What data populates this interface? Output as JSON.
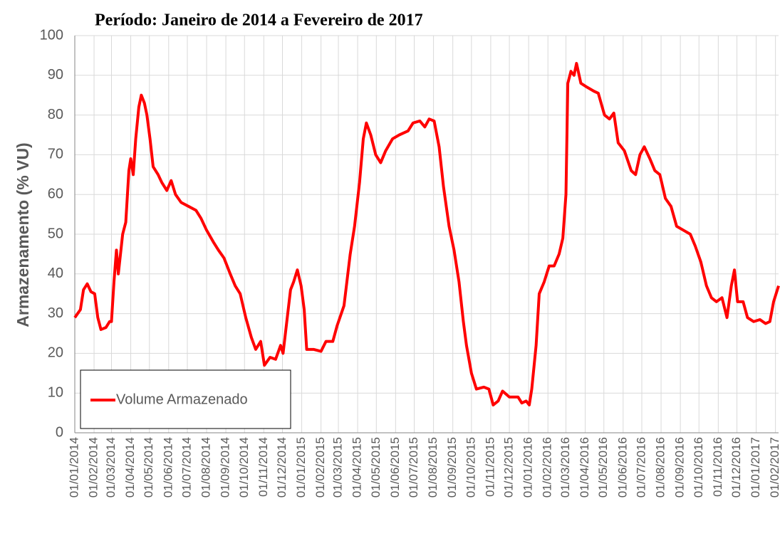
{
  "chart_data": {
    "type": "line",
    "title": "Período: Janeiro de 2014 a Fevereiro de 2017",
    "y_label": "Armazenamento (% VU)",
    "grid": true,
    "legend": "lower left",
    "xlim": [
      "01/01/2014",
      "06/02/2017"
    ],
    "ylim": [
      0,
      100
    ],
    "yticks": [
      0,
      10,
      20,
      30,
      40,
      50,
      60,
      70,
      80,
      90,
      100
    ],
    "xticks": [
      "01/01/2014",
      "01/02/2014",
      "01/03/2014",
      "01/04/2014",
      "01/05/2014",
      "01/06/2014",
      "01/07/2014",
      "01/08/2014",
      "01/09/2014",
      "01/10/2014",
      "01/11/2014",
      "01/12/2014",
      "01/01/2015",
      "01/02/2015",
      "01/03/2015",
      "01/04/2015",
      "01/05/2015",
      "01/06/2015",
      "01/07/2015",
      "01/08/2015",
      "01/09/2015",
      "01/10/2015",
      "01/11/2015",
      "01/12/2015",
      "01/01/2016",
      "01/02/2016",
      "01/03/2016",
      "01/04/2016",
      "01/05/2016",
      "01/06/2016",
      "01/07/2016",
      "01/08/2016",
      "01/09/2016",
      "01/10/2016",
      "01/11/2016",
      "01/12/2016",
      "01/01/2017",
      "01/02/2017"
    ],
    "x": [
      "01/01/2014",
      "10/01/2014",
      "15/01/2014",
      "21/01/2014",
      "27/01/2014",
      "02/02/2014",
      "07/02/2014",
      "12/02/2014",
      "20/02/2014",
      "26/02/2014",
      "01/03/2014",
      "05/03/2014",
      "09/03/2014",
      "12/03/2014",
      "19/03/2014",
      "24/03/2014",
      "29/03/2014",
      "01/04/2014",
      "05/04/2014",
      "09/04/2014",
      "14/04/2014",
      "18/04/2014",
      "23/04/2014",
      "27/04/2014",
      "02/05/2014",
      "07/05/2014",
      "15/05/2014",
      "21/05/2014",
      "29/05/2014",
      "05/06/2014",
      "12/06/2014",
      "21/06/2014",
      "03/07/2014",
      "15/07/2014",
      "23/07/2014",
      "01/08/2014",
      "12/08/2014",
      "20/08/2014",
      "29/08/2014",
      "08/09/2014",
      "16/09/2014",
      "24/09/2014",
      "03/10/2014",
      "12/10/2014",
      "19/10/2014",
      "27/10/2014",
      "02/11/2014",
      "11/11/2014",
      "20/11/2014",
      "28/11/2014",
      "02/12/2014",
      "08/12/2014",
      "14/12/2014",
      "19/12/2014",
      "25/12/2014",
      "31/12/2014",
      "05/01/2015",
      "09/01/2015",
      "20/01/2015",
      "01/02/2015",
      "09/02/2015",
      "20/02/2015",
      "27/02/2015",
      "10/03/2015",
      "20/03/2015",
      "27/03/2015",
      "04/04/2015",
      "10/04/2015",
      "15/04/2015",
      "22/04/2015",
      "30/04/2015",
      "08/05/2015",
      "16/05/2015",
      "27/05/2015",
      "07/06/2015",
      "21/06/2015",
      "29/06/2015",
      "10/07/2015",
      "18/07/2015",
      "25/07/2015",
      "02/08/2015",
      "10/08/2015",
      "17/08/2015",
      "26/08/2015",
      "03/09/2015",
      "11/09/2015",
      "18/09/2015",
      "23/09/2015",
      "01/10/2015",
      "09/10/2015",
      "21/10/2015",
      "29/10/2015",
      "05/11/2015",
      "13/11/2015",
      "20/11/2015",
      "01/12/2015",
      "15/12/2015",
      "21/12/2015",
      "28/12/2015",
      "02/01/2016",
      "06/01/2016",
      "13/01/2016",
      "18/01/2016",
      "26/01/2016",
      "03/02/2016",
      "11/02/2016",
      "19/02/2016",
      "25/02/2016",
      "01/03/2016",
      "04/03/2016",
      "09/03/2016",
      "14/03/2016",
      "18/03/2016",
      "25/03/2016",
      "04/04/2016",
      "15/04/2016",
      "22/04/2016",
      "02/05/2016",
      "10/05/2016",
      "17/05/2016",
      "24/05/2016",
      "03/06/2016",
      "14/06/2016",
      "21/06/2016",
      "28/06/2016",
      "05/07/2016",
      "14/07/2016",
      "22/07/2016",
      "30/07/2016",
      "08/08/2016",
      "17/08/2016",
      "26/08/2016",
      "06/09/2016",
      "17/09/2016",
      "25/09/2016",
      "04/10/2016",
      "13/10/2016",
      "21/10/2016",
      "29/10/2016",
      "07/11/2016",
      "15/11/2016",
      "22/11/2016",
      "27/11/2016",
      "02/12/2016",
      "11/12/2016",
      "18/12/2016",
      "28/12/2016",
      "07/01/2017",
      "16/01/2017",
      "23/01/2017",
      "29/01/2017",
      "06/02/2017"
    ],
    "series": [
      {
        "name": "Volume Armazenado",
        "color": "#ff0000",
        "values": [
          29,
          31,
          36,
          37.5,
          35.5,
          35,
          29,
          26,
          26.5,
          28,
          28,
          38,
          46,
          40,
          50,
          53,
          66,
          69,
          65,
          74,
          82,
          85,
          83,
          80,
          74,
          67,
          65,
          63,
          61,
          63.5,
          60,
          58,
          57,
          56,
          54,
          51,
          48,
          46,
          44,
          40,
          37,
          35,
          29,
          24,
          21,
          23,
          17,
          19,
          18.5,
          22,
          20,
          28,
          36,
          38,
          41,
          37,
          31,
          21,
          21,
          20.5,
          23,
          23,
          27,
          32,
          45,
          52,
          63,
          74,
          78,
          75,
          70,
          68,
          71,
          74,
          75,
          76,
          78,
          78.5,
          77,
          79,
          78.5,
          72,
          62,
          52,
          46,
          38,
          28,
          22,
          15,
          11,
          11.5,
          11,
          7,
          8,
          10.5,
          9,
          9,
          7.5,
          8,
          7,
          11,
          22,
          35,
          38,
          42,
          42,
          45,
          49,
          60,
          88,
          91,
          90,
          93,
          88,
          87,
          86,
          85.5,
          80,
          79,
          80.5,
          73,
          71,
          66,
          65,
          70,
          72,
          69,
          66,
          65,
          59,
          57,
          52,
          51,
          50,
          47,
          43,
          37,
          34,
          33,
          34,
          29,
          37,
          41,
          33,
          33,
          29,
          28,
          28.5,
          27.5,
          28,
          33,
          37
        ]
      }
    ]
  }
}
